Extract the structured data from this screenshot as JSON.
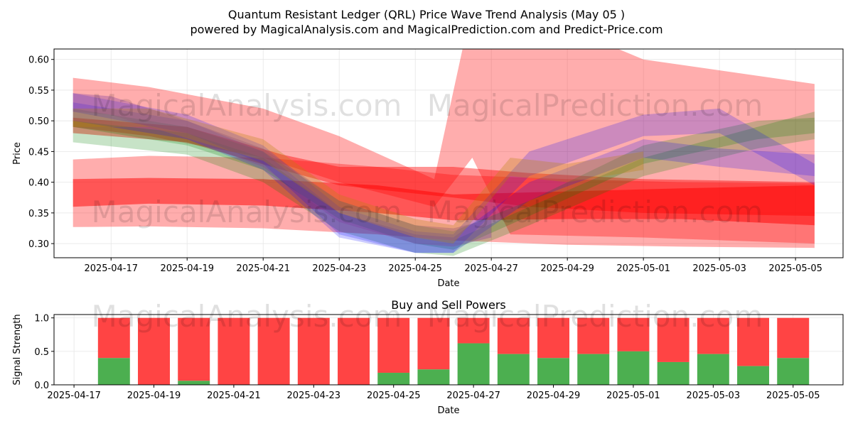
{
  "header": {
    "title": "Quantum Resistant Ledger (QRL) Price Wave Trend Analysis (May 05 )",
    "subtitle": "powered by MagicalAnalysis.com and MagicalPrediction.com and Predict-Price.com"
  },
  "watermarks": [
    "MagicalAnalysis.com",
    "MagicalPrediction.com"
  ],
  "colors": {
    "red": "#ff0000",
    "green": "#008000",
    "blue": "#0000ff",
    "orange": "#b8860b",
    "purple": "#8040a0",
    "buy": "#4caf50",
    "sell": "#ff4444"
  },
  "chart_data": [
    {
      "type": "area",
      "name": "price-wave-chart",
      "xlabel": "Date",
      "ylabel": "Price",
      "ylim": [
        0.277,
        0.617
      ],
      "xlim": [
        "2025-04-15 12:00",
        "2025-05-06 06:00"
      ],
      "grid": true,
      "x_ticks": [
        "2025-04-17",
        "2025-04-19",
        "2025-04-21",
        "2025-04-23",
        "2025-04-25",
        "2025-04-27",
        "2025-04-29",
        "2025-05-01",
        "2025-05-03",
        "2025-05-05"
      ],
      "y_ticks": [
        "0.30",
        "0.35",
        "0.40",
        "0.45",
        "0.50",
        "0.55",
        "0.60"
      ],
      "bands": [
        {
          "color": "red",
          "opacity": 0.32,
          "x": [
            "2025-04-16",
            "2025-04-18",
            "2025-04-21",
            "2025-04-23",
            "2025-04-25 12:00",
            "2025-04-26 12:00",
            "2025-04-27 12:00",
            "2025-05-01",
            "2025-05-05 12:00"
          ],
          "upper": [
            0.57,
            0.555,
            0.52,
            0.475,
            0.405,
            0.69,
            0.69,
            0.6,
            0.56
          ],
          "lower": [
            0.49,
            0.475,
            0.44,
            0.4,
            0.36,
            0.44,
            0.315,
            0.31,
            0.3
          ]
        },
        {
          "color": "red",
          "opacity": 0.32,
          "x": [
            "2025-04-16",
            "2025-04-18",
            "2025-04-21",
            "2025-04-24",
            "2025-04-26",
            "2025-04-29",
            "2025-05-02",
            "2025-05-05 12:00"
          ],
          "upper": [
            0.437,
            0.443,
            0.44,
            0.425,
            0.412,
            0.405,
            0.4,
            0.398
          ],
          "lower": [
            0.327,
            0.328,
            0.325,
            0.315,
            0.305,
            0.298,
            0.295,
            0.293
          ]
        },
        {
          "color": "red",
          "opacity": 0.5,
          "x": [
            "2025-04-16",
            "2025-04-18",
            "2025-04-21",
            "2025-04-24",
            "2025-04-26",
            "2025-04-29",
            "2025-05-02",
            "2025-05-05 12:00"
          ],
          "upper": [
            0.405,
            0.407,
            0.405,
            0.395,
            0.38,
            0.385,
            0.39,
            0.395
          ],
          "lower": [
            0.36,
            0.365,
            0.362,
            0.35,
            0.338,
            0.34,
            0.34,
            0.33
          ]
        },
        {
          "color": "red",
          "opacity": 0.42,
          "x": [
            "2025-04-16",
            "2025-04-19",
            "2025-04-21 12:00",
            "2025-04-23",
            "2025-04-26",
            "2025-04-28",
            "2025-05-01",
            "2025-05-05 12:00"
          ],
          "upper": [
            0.505,
            0.49,
            0.445,
            0.425,
            0.425,
            0.415,
            0.405,
            0.4
          ],
          "lower": [
            0.48,
            0.465,
            0.42,
            0.395,
            0.375,
            0.36,
            0.35,
            0.345
          ]
        },
        {
          "color": "green",
          "opacity": 0.22,
          "x": [
            "2025-04-16",
            "2025-04-19",
            "2025-04-21",
            "2025-04-23",
            "2025-04-25",
            "2025-04-26",
            "2025-04-28",
            "2025-05-01",
            "2025-05-04",
            "2025-05-05 12:00"
          ],
          "upper": [
            0.5,
            0.48,
            0.44,
            0.35,
            0.31,
            0.305,
            0.36,
            0.44,
            0.49,
            0.515
          ],
          "lower": [
            0.465,
            0.445,
            0.4,
            0.32,
            0.285,
            0.28,
            0.33,
            0.41,
            0.455,
            0.47
          ]
        },
        {
          "color": "green",
          "opacity": 0.22,
          "x": [
            "2025-04-16",
            "2025-04-19",
            "2025-04-21",
            "2025-04-23",
            "2025-04-25",
            "2025-04-26",
            "2025-04-28",
            "2025-05-01",
            "2025-05-04",
            "2025-05-05 12:00"
          ],
          "upper": [
            0.52,
            0.49,
            0.45,
            0.37,
            0.33,
            0.32,
            0.37,
            0.46,
            0.5,
            0.505
          ],
          "lower": [
            0.49,
            0.46,
            0.42,
            0.34,
            0.3,
            0.29,
            0.345,
            0.43,
            0.47,
            0.48
          ]
        },
        {
          "color": "blue",
          "opacity": 0.2,
          "x": [
            "2025-04-16",
            "2025-04-19",
            "2025-04-21",
            "2025-04-23",
            "2025-04-25",
            "2025-04-26",
            "2025-04-28",
            "2025-05-01",
            "2025-05-03",
            "2025-05-05 12:00"
          ],
          "upper": [
            0.545,
            0.51,
            0.46,
            0.36,
            0.32,
            0.315,
            0.45,
            0.51,
            0.52,
            0.43
          ],
          "lower": [
            0.515,
            0.48,
            0.43,
            0.315,
            0.285,
            0.285,
            0.41,
            0.475,
            0.48,
            0.395
          ]
        },
        {
          "color": "blue",
          "opacity": 0.2,
          "x": [
            "2025-04-16",
            "2025-04-19",
            "2025-04-21",
            "2025-04-23",
            "2025-04-25",
            "2025-04-26",
            "2025-04-28",
            "2025-05-01",
            "2025-05-03",
            "2025-05-05 12:00"
          ],
          "upper": [
            0.53,
            0.5,
            0.45,
            0.35,
            0.315,
            0.31,
            0.4,
            0.47,
            0.455,
            0.445
          ],
          "lower": [
            0.5,
            0.47,
            0.42,
            0.31,
            0.285,
            0.285,
            0.37,
            0.44,
            0.425,
            0.41
          ]
        },
        {
          "color": "purple",
          "opacity": 0.35,
          "x": [
            "2025-04-16",
            "2025-04-17",
            "2025-04-19",
            "2025-04-21",
            "2025-04-23",
            "2025-04-25",
            "2025-04-26",
            "2025-04-27"
          ],
          "upper": [
            0.545,
            0.54,
            0.5,
            0.455,
            0.37,
            0.33,
            0.325,
            0.34
          ],
          "lower": [
            0.515,
            0.51,
            0.47,
            0.425,
            0.335,
            0.3,
            0.295,
            0.31
          ]
        },
        {
          "color": "orange",
          "opacity": 0.3,
          "x": [
            "2025-04-16",
            "2025-04-18",
            "2025-04-21",
            "2025-04-23",
            "2025-04-25",
            "2025-04-26",
            "2025-04-27 12:00",
            "2025-04-29",
            "2025-05-01"
          ],
          "upper": [
            0.52,
            0.52,
            0.47,
            0.38,
            0.34,
            0.33,
            0.44,
            0.43,
            0.45
          ],
          "lower": [
            0.49,
            0.49,
            0.435,
            0.35,
            0.31,
            0.3,
            0.41,
            0.4,
            0.42
          ]
        }
      ]
    },
    {
      "type": "bar",
      "name": "buy-sell-powers",
      "title": "Buy and Sell Powers",
      "xlabel": "Date",
      "ylabel": "Signal Strength",
      "ylim": [
        0,
        1.05
      ],
      "xlim": [
        "2025-04-16 12:00",
        "2025-05-06 06:00"
      ],
      "grid": true,
      "x_ticks": [
        "2025-04-17",
        "2025-04-19",
        "2025-04-21",
        "2025-04-23",
        "2025-04-25",
        "2025-04-27",
        "2025-04-29",
        "2025-05-01",
        "2025-05-03",
        "2025-05-05"
      ],
      "y_ticks": [
        "0.0",
        "0.5",
        "1.0"
      ],
      "categories": [
        "2025-04-18",
        "2025-04-19",
        "2025-04-20",
        "2025-04-21",
        "2025-04-22",
        "2025-04-23",
        "2025-04-24",
        "2025-04-25",
        "2025-04-26",
        "2025-04-27",
        "2025-04-28",
        "2025-04-29",
        "2025-04-30",
        "2025-05-01",
        "2025-05-02",
        "2025-05-03",
        "2025-05-04",
        "2025-05-05"
      ],
      "series": [
        {
          "color": "buy",
          "values": [
            0.4,
            0.0,
            0.06,
            0.0,
            0.0,
            0.0,
            0.0,
            0.18,
            0.23,
            0.62,
            0.46,
            0.4,
            0.46,
            0.5,
            0.34,
            0.46,
            0.28,
            0.4
          ]
        },
        {
          "color": "sell",
          "values": [
            0.6,
            1.0,
            0.94,
            1.0,
            1.0,
            1.0,
            1.0,
            0.82,
            0.77,
            0.38,
            0.54,
            0.6,
            0.54,
            0.5,
            0.66,
            0.54,
            0.72,
            0.6
          ]
        }
      ]
    }
  ]
}
